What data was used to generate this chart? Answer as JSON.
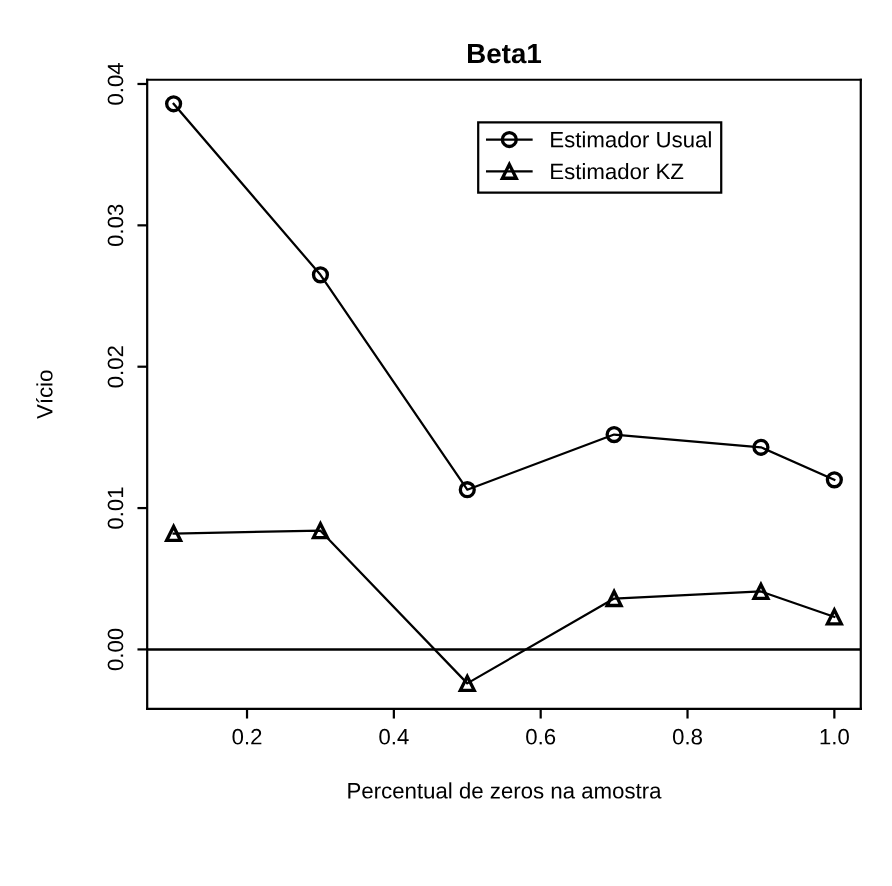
{
  "chart_data": {
    "type": "line",
    "title": "Beta1",
    "xlabel": "Percentual de zeros na amostra",
    "ylabel": "Vício",
    "x": [
      0.1,
      0.3,
      0.5,
      0.7,
      0.9,
      1.0
    ],
    "series": [
      {
        "name": "Estimador Usual",
        "color": "#000000",
        "marker": "circle",
        "values": [
          0.0386,
          0.0265,
          0.0113,
          0.0152,
          0.0143,
          0.012
        ]
      },
      {
        "name": "Estimador KZ",
        "color": "#000000",
        "marker": "triangle",
        "values": [
          0.0082,
          0.0084,
          -0.0024,
          0.0036,
          0.0041,
          0.0023
        ]
      }
    ],
    "xlim": [
      0.064,
      1.036
    ],
    "ylim": [
      -0.0042,
      0.0403
    ],
    "xticks": [
      0.2,
      0.4,
      0.6,
      0.8,
      {
        "value": 1,
        "label": "1.0"
      }
    ],
    "yticks": [
      {
        "value": 0,
        "label": "0.00"
      },
      0.01,
      0.02,
      0.03,
      0.04
    ],
    "ref_lines": [
      {
        "axis": "y",
        "value": 0,
        "color": "#000000"
      }
    ],
    "grid": false,
    "legend": "top right",
    "line_style": "solid"
  }
}
